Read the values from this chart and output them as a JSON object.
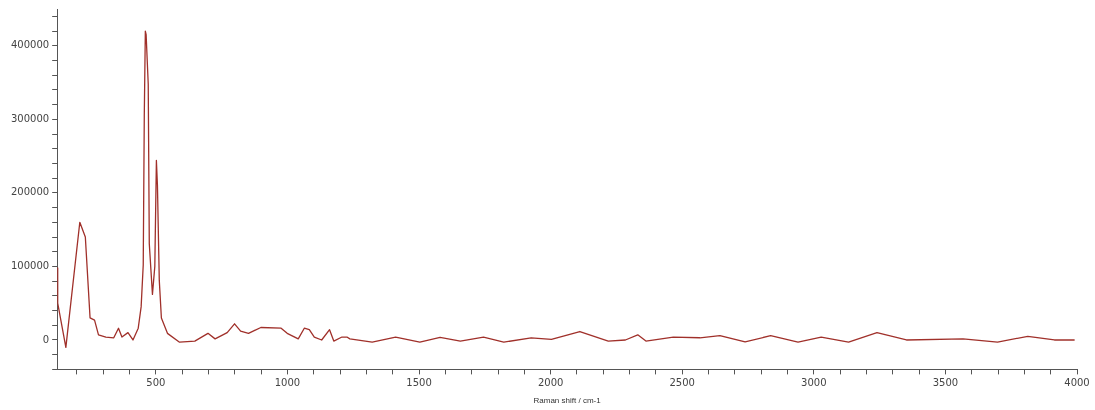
{
  "chart_data": {
    "type": "line",
    "xlabel": "Raman shift / cm-1",
    "x": [
      125,
      127,
      158,
      211,
      232,
      250,
      267,
      282,
      310,
      340,
      358,
      371,
      394,
      413,
      433,
      444,
      452,
      456,
      460,
      463,
      471,
      475,
      487,
      496,
      502,
      506,
      513,
      521,
      544,
      590,
      648,
      698,
      725,
      771,
      799,
      822,
      852,
      899,
      976,
      999,
      1041,
      1064,
      1083,
      1102,
      1130,
      1160,
      1176,
      1207,
      1226,
      1237,
      1322,
      1411,
      1503,
      1580,
      1657,
      1745,
      1822,
      1926,
      2003,
      2111,
      2219,
      2284,
      2331,
      2362,
      2466,
      2567,
      2643,
      2739,
      2836,
      2940,
      3028,
      3132,
      3240,
      3352,
      3567,
      3698,
      3813,
      3914,
      3991
    ],
    "series": [
      {
        "color": "#a0302a",
        "values": [
          98000,
          50000,
          -10000,
          160000,
          140000,
          30000,
          27000,
          7000,
          4000,
          3000,
          16000,
          4000,
          10000,
          0,
          16000,
          45000,
          102000,
          305000,
          420000,
          415000,
          348000,
          131000,
          62000,
          100000,
          244000,
          210000,
          81000,
          30000,
          9000,
          -3000,
          -1500,
          9000,
          1500,
          10000,
          22000,
          12000,
          9000,
          17000,
          16000,
          9000,
          1500,
          16000,
          14000,
          4000,
          0,
          14000,
          -1500,
          4000,
          4000,
          1500,
          -3000,
          4000,
          -3000,
          3500,
          -1500,
          4000,
          -3000,
          3000,
          700,
          11500,
          -1500,
          0,
          7000,
          -1500,
          4000,
          3000,
          5800,
          -2500,
          5800,
          -3000,
          4000,
          -3000,
          10000,
          0,
          1500,
          -3000,
          5000,
          0,
          0
        ]
      }
    ],
    "xlim": [
      125,
      4000
    ],
    "ylim": [
      -40000,
      450000
    ],
    "xticks": [
      {
        "value": 200,
        "label": null
      },
      {
        "value": 300,
        "label": null
      },
      {
        "value": 400,
        "label": null
      },
      500,
      {
        "value": 600,
        "label": null
      },
      {
        "value": 700,
        "label": null
      },
      {
        "value": 800,
        "label": null
      },
      {
        "value": 900,
        "label": null
      },
      1000,
      {
        "value": 1100,
        "label": null
      },
      {
        "value": 1200,
        "label": null
      },
      {
        "value": 1300,
        "label": null
      },
      {
        "value": 1400,
        "label": null
      },
      1500,
      {
        "value": 1600,
        "label": null
      },
      {
        "value": 1700,
        "label": null
      },
      {
        "value": 1800,
        "label": null
      },
      {
        "value": 1900,
        "label": null
      },
      2000,
      {
        "value": 2100,
        "label": null
      },
      {
        "value": 2200,
        "label": null
      },
      {
        "value": 2300,
        "label": null
      },
      {
        "value": 2400,
        "label": null
      },
      2500,
      {
        "value": 2600,
        "label": null
      },
      {
        "value": 2700,
        "label": null
      },
      {
        "value": 2800,
        "label": null
      },
      {
        "value": 2900,
        "label": null
      },
      3000,
      {
        "value": 3100,
        "label": null
      },
      {
        "value": 3200,
        "label": null
      },
      {
        "value": 3300,
        "label": null
      },
      {
        "value": 3400,
        "label": null
      },
      3500,
      {
        "value": 3600,
        "label": null
      },
      {
        "value": 3700,
        "label": null
      },
      {
        "value": 3800,
        "label": null
      },
      {
        "value": 3900,
        "label": null
      },
      4000
    ],
    "yticks": [
      {
        "value": -40000,
        "label": null
      },
      {
        "value": -20000,
        "label": null
      },
      0,
      {
        "value": 20000,
        "label": null
      },
      {
        "value": 40000,
        "label": null
      },
      {
        "value": 60000,
        "label": null
      },
      {
        "value": 80000,
        "label": null
      },
      100000,
      {
        "value": 120000,
        "label": null
      },
      {
        "value": 140000,
        "label": null
      },
      {
        "value": 160000,
        "label": null
      },
      {
        "value": 180000,
        "label": null
      },
      200000,
      {
        "value": 220000,
        "label": null
      },
      {
        "value": 240000,
        "label": null
      },
      {
        "value": 260000,
        "label": null
      },
      {
        "value": 280000,
        "label": null
      },
      300000,
      {
        "value": 320000,
        "label": null
      },
      {
        "value": 340000,
        "label": null
      },
      {
        "value": 360000,
        "label": null
      },
      {
        "value": 380000,
        "label": null
      },
      400000,
      {
        "value": 420000,
        "label": null
      },
      {
        "value": 440000,
        "label": null
      }
    ],
    "grid": false,
    "legend": false,
    "marker": "none",
    "line_style": "solid"
  }
}
